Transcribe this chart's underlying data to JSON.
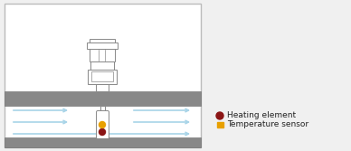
{
  "bg_color": "#f0f0f0",
  "diagram_bg": "#ffffff",
  "pipe_color": "#888888",
  "pipe_edge": "#666666",
  "arrow_color": "#a8d4e8",
  "probe_fill": "#ffffff",
  "probe_edge": "#888888",
  "heating_element_color": "#8B1515",
  "temperature_sensor_color": "#E8A000",
  "legend_heating": "Heating element",
  "legend_temp": "Temperature sensor",
  "font_size": 6.5
}
